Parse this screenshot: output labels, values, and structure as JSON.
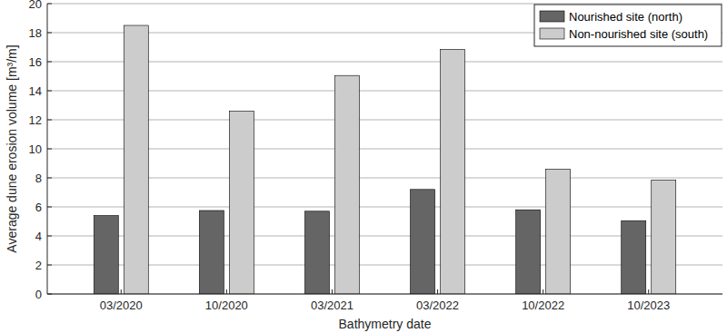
{
  "chart_data": {
    "type": "bar",
    "x_label": "Bathymetry date",
    "y_label": "Average dune erosion volume [m³/m]",
    "categories": [
      "03/2020",
      "10/2020",
      "03/2021",
      "03/2022",
      "10/2022",
      "10/2023"
    ],
    "series": [
      {
        "name": "Nourished site (north)",
        "color": "#656565",
        "values": [
          5.4,
          5.75,
          5.7,
          7.2,
          5.8,
          5.05
        ]
      },
      {
        "name": "Non-nourished site (south)",
        "color": "#cccccc",
        "values": [
          18.5,
          12.6,
          15.05,
          16.85,
          8.6,
          7.85
        ]
      }
    ],
    "ylim": [
      0,
      20
    ],
    "yticks": [
      0,
      2,
      4,
      6,
      8,
      10,
      12,
      14,
      16,
      18,
      20
    ],
    "grid": true,
    "legend": "northeast"
  }
}
